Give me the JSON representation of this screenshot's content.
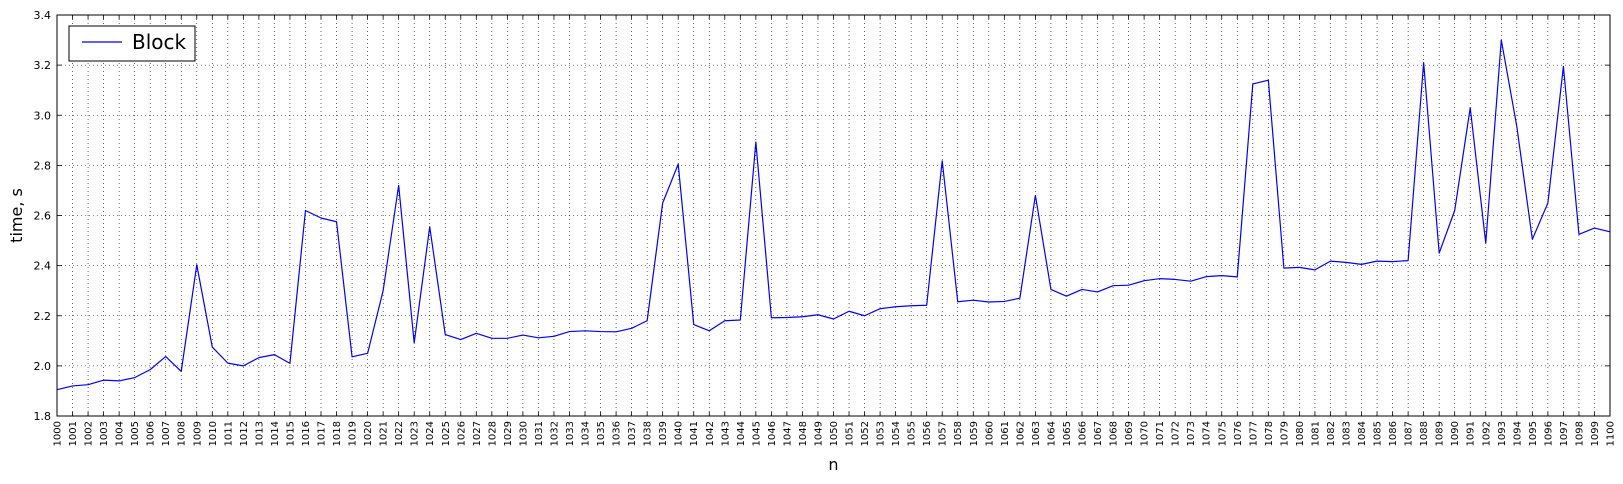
{
  "chart_data": {
    "type": "line",
    "title": "",
    "xlabel": "n",
    "ylabel": "time, s",
    "xlim": [
      1000,
      1100
    ],
    "ylim": [
      1.8,
      3.4
    ],
    "yticks": [
      1.8,
      2.0,
      2.2,
      2.4,
      2.6,
      2.8,
      3.0,
      3.2,
      3.4
    ],
    "grid": true,
    "legend_position": "top-left",
    "series": [
      {
        "name": "Block",
        "color": "#0000ff",
        "x": [
          1000,
          1001,
          1002,
          1003,
          1004,
          1005,
          1006,
          1007,
          1008,
          1009,
          1010,
          1011,
          1012,
          1013,
          1014,
          1015,
          1016,
          1017,
          1018,
          1019,
          1020,
          1021,
          1022,
          1023,
          1024,
          1025,
          1026,
          1027,
          1028,
          1029,
          1030,
          1031,
          1032,
          1033,
          1034,
          1035,
          1036,
          1037,
          1038,
          1039,
          1040,
          1041,
          1042,
          1043,
          1044,
          1045,
          1046,
          1047,
          1048,
          1049,
          1050,
          1051,
          1052,
          1053,
          1054,
          1055,
          1056,
          1057,
          1058,
          1059,
          1060,
          1061,
          1062,
          1063,
          1064,
          1065,
          1066,
          1067,
          1068,
          1069,
          1070,
          1071,
          1072,
          1073,
          1074,
          1075,
          1076,
          1077,
          1078,
          1079,
          1080,
          1081,
          1082,
          1083,
          1084,
          1085,
          1086,
          1087,
          1088,
          1089,
          1090,
          1091,
          1092,
          1093,
          1094,
          1095,
          1096,
          1097,
          1098,
          1099,
          1100
        ],
        "y": [
          1.905,
          1.92,
          1.925,
          1.943,
          1.94,
          1.953,
          1.985,
          2.037,
          1.978,
          2.403,
          2.075,
          2.011,
          2.0,
          2.033,
          2.045,
          2.01,
          2.62,
          2.59,
          2.575,
          2.036,
          2.05,
          2.3,
          2.72,
          2.092,
          2.555,
          2.125,
          2.105,
          2.13,
          2.11,
          2.11,
          2.123,
          2.112,
          2.118,
          2.137,
          2.14,
          2.137,
          2.136,
          2.15,
          2.18,
          2.65,
          2.805,
          2.165,
          2.14,
          2.18,
          2.183,
          2.893,
          2.192,
          2.193,
          2.196,
          2.204,
          2.187,
          2.218,
          2.2,
          2.228,
          2.236,
          2.24,
          2.242,
          2.818,
          2.256,
          2.262,
          2.255,
          2.257,
          2.27,
          2.68,
          2.305,
          2.278,
          2.305,
          2.295,
          2.32,
          2.322,
          2.34,
          2.348,
          2.345,
          2.338,
          2.356,
          2.36,
          2.355,
          3.125,
          3.14,
          2.39,
          2.393,
          2.383,
          2.418,
          2.413,
          2.405,
          2.418,
          2.416,
          2.42,
          3.21,
          2.45,
          2.62,
          3.03,
          2.49,
          3.3,
          2.955,
          2.505,
          2.65,
          3.195,
          2.525,
          2.55,
          2.535
        ]
      }
    ]
  }
}
